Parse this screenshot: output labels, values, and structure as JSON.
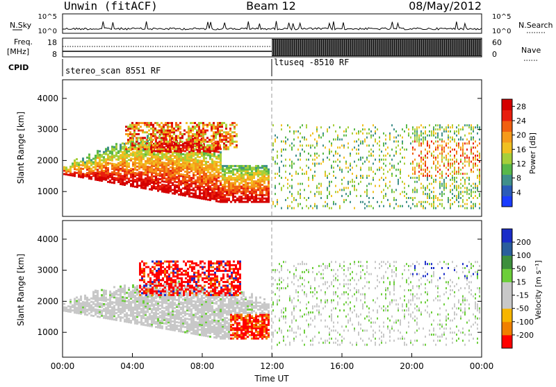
{
  "header": {
    "station": "Unwin (fitACF)",
    "beam": "Beam 12",
    "date": "08/May/2012"
  },
  "strip_labels": {
    "nsky": "N.Sky",
    "freq_line1": "Freq.",
    "freq_line2": "[MHz]",
    "cpid": "CPID",
    "nsearch": "N.Search",
    "nave": "Nave",
    "nsky_ticks": [
      "10^5",
      "10^0"
    ],
    "nsearch_ticks": [
      "10^5",
      "10^0"
    ],
    "freq_ticks": [
      "18",
      "8"
    ],
    "nave_ticks": [
      "60",
      "0"
    ]
  },
  "cpid_programs": [
    {
      "label": "stereo_scan 8551 RF",
      "start_hour": 0
    },
    {
      "label": "ltuseq -8510 RF",
      "start_hour": 12
    }
  ],
  "colors": {
    "scale": [
      "#1a3cff",
      "#2a5bb8",
      "#3f8f8a",
      "#58b84a",
      "#a6cf3a",
      "#f0c020",
      "#f59a1a",
      "#f06010",
      "#e81e0e",
      "#d40000"
    ],
    "velocity": [
      "#ff0000",
      "#f07f00",
      "#f7b500",
      "#c8c8c8",
      "#c8c8c8",
      "#6cce3a",
      "#3d8f3d",
      "#2a5e9c",
      "#1a2cc8"
    ]
  },
  "chart_data": [
    {
      "type": "heatmap",
      "name": "power",
      "xlabel": "Time UT",
      "ylabel": "Slant Range [km]",
      "xlim": [
        0,
        24
      ],
      "ylim": [
        200,
        4600
      ],
      "xticks": [
        "00:00",
        "04:00",
        "08:00",
        "12:00",
        "16:00",
        "20:00",
        "00:00"
      ],
      "yticks": [
        "1000",
        "2000",
        "3000",
        "4000"
      ],
      "colorbar": {
        "label": "Power [dB]",
        "ticks": [
          "4",
          "8",
          "12",
          "16",
          "20",
          "24",
          "28"
        ],
        "range": [
          0,
          30
        ]
      }
    },
    {
      "type": "heatmap",
      "name": "velocity",
      "xlabel": "Time UT",
      "ylabel": "Slant Range [km]",
      "xlim": [
        0,
        24
      ],
      "ylim": [
        200,
        4600
      ],
      "xticks": [
        "00:00",
        "04:00",
        "08:00",
        "12:00",
        "16:00",
        "20:00",
        "00:00"
      ],
      "yticks": [
        "1000",
        "2000",
        "3000",
        "4000"
      ],
      "colorbar": {
        "label": "Velocity [m s⁻¹]",
        "ticks": [
          "200",
          "100",
          "50",
          "15",
          "-15",
          "-50",
          "-100",
          "-200"
        ],
        "range": [
          -250,
          250
        ]
      }
    }
  ]
}
